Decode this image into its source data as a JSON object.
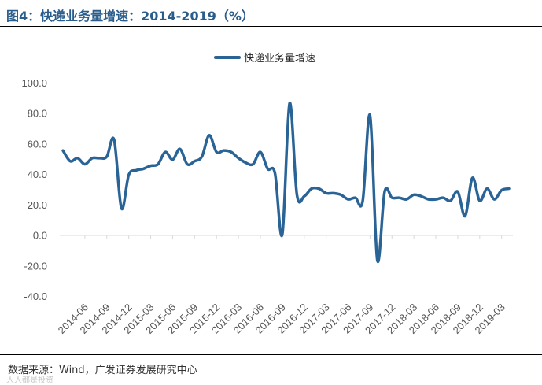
{
  "figure": {
    "title": "图4：快递业务量增速：2014-2019（%）",
    "source": "数据来源：Wind，广发证券发展研究中心",
    "watermark": "人人都是投资"
  },
  "colors": {
    "series": "#2a6496",
    "axis": "#d9d9d9",
    "title": "#2a5d8c"
  },
  "chart_data": {
    "type": "line",
    "title": "",
    "xlabel": "",
    "ylabel": "",
    "ylim": [
      -40,
      100
    ],
    "y_ticks": [
      "100.0",
      "80.0",
      "60.0",
      "40.0",
      "20.0",
      "0.0",
      "-20.0",
      "-40.0"
    ],
    "x_tick_labels": [
      "2014-06",
      "2014-09",
      "2014-12",
      "2015-03",
      "2015-06",
      "2015-09",
      "2015-12",
      "2016-03",
      "2016-06",
      "2016-09",
      "2016-12",
      "2017-03",
      "2017-06",
      "2017-09",
      "2017-12",
      "2018-03",
      "2018-06",
      "2018-09",
      "2018-12",
      "2019-03"
    ],
    "grid": false,
    "legend_position": "top-center",
    "series": [
      {
        "name": "快递业务量增速",
        "x": [
          "2014-03",
          "2014-04",
          "2014-05",
          "2014-06",
          "2014-07",
          "2014-08",
          "2014-09",
          "2014-10",
          "2014-11",
          "2014-12",
          "2015-01",
          "2015-02",
          "2015-03",
          "2015-04",
          "2015-05",
          "2015-06",
          "2015-07",
          "2015-08",
          "2015-09",
          "2015-10",
          "2015-11",
          "2015-12",
          "2016-01",
          "2016-02",
          "2016-03",
          "2016-04",
          "2016-05",
          "2016-06",
          "2016-07",
          "2016-08",
          "2016-09",
          "2016-10",
          "2016-11",
          "2016-12",
          "2017-01",
          "2017-02",
          "2017-03",
          "2017-04",
          "2017-05",
          "2017-06",
          "2017-07",
          "2017-08",
          "2017-09",
          "2017-10",
          "2017-11",
          "2017-12",
          "2018-01",
          "2018-02",
          "2018-03",
          "2018-04",
          "2018-05",
          "2018-06",
          "2018-07",
          "2018-08",
          "2018-09",
          "2018-10",
          "2018-11",
          "2018-12",
          "2019-01",
          "2019-02",
          "2019-03",
          "2019-04"
        ],
        "values": [
          56,
          49,
          51,
          47,
          51,
          51,
          52,
          63,
          18,
          40,
          43,
          44,
          46,
          47,
          55,
          50,
          57,
          47,
          49,
          52,
          66,
          55,
          56,
          55,
          51,
          48,
          47,
          55,
          44,
          41,
          1,
          87,
          27,
          26,
          31,
          31,
          28,
          28,
          27,
          24,
          25,
          23,
          79,
          -16,
          29,
          25,
          25,
          24,
          27,
          26,
          24,
          24,
          25,
          23,
          29,
          13,
          38,
          23,
          31,
          24,
          30,
          31
        ]
      }
    ]
  }
}
